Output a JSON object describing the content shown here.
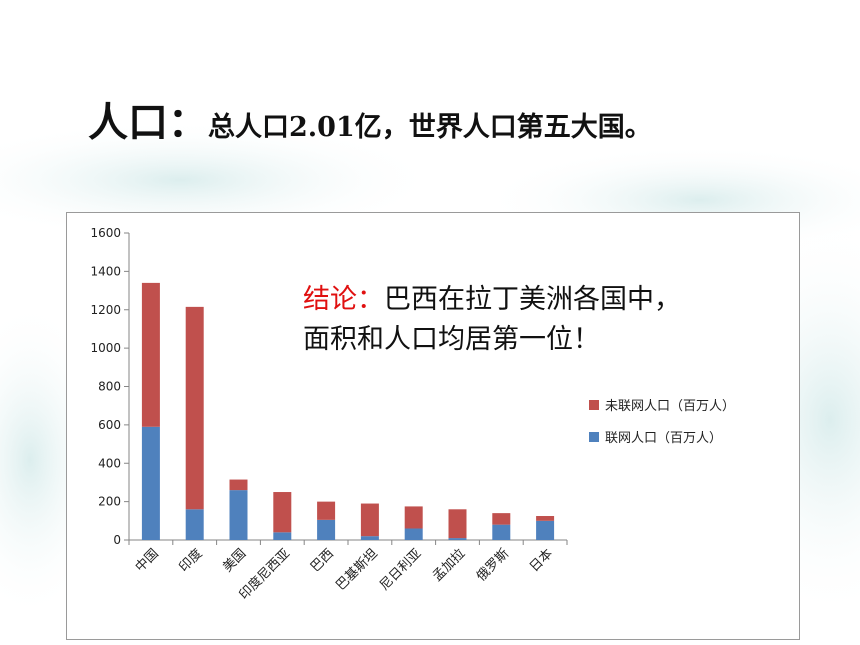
{
  "slide": {
    "title_lead": "人口：",
    "title_rest": "总人口2.01亿，世界人口第五大国。",
    "conclusion_lead": "结论：",
    "conclusion_line1": "巴西在拉丁美洲各国中，",
    "conclusion_line2": "面积和人口均居第一位！"
  },
  "chart_data": {
    "type": "bar",
    "stacked": true,
    "categories": [
      "中国",
      "印度",
      "美国",
      "印度尼西亚",
      "巴西",
      "巴基斯坦",
      "尼日利亚",
      "孟加拉",
      "俄罗斯",
      "日本"
    ],
    "series": [
      {
        "name": "联网人口（百万人）",
        "color": "#4f81bd",
        "values": [
          590,
          160,
          260,
          40,
          105,
          20,
          60,
          10,
          80,
          100
        ]
      },
      {
        "name": "未联网人口（百万人）",
        "color": "#c0504d",
        "values": [
          750,
          1055,
          55,
          210,
          95,
          170,
          115,
          150,
          60,
          25
        ]
      }
    ],
    "ylim": [
      0,
      1600
    ],
    "yticks": [
      0,
      200,
      400,
      600,
      800,
      1000,
      1200,
      1400,
      1600
    ],
    "legend_position": "right",
    "grid": false
  }
}
